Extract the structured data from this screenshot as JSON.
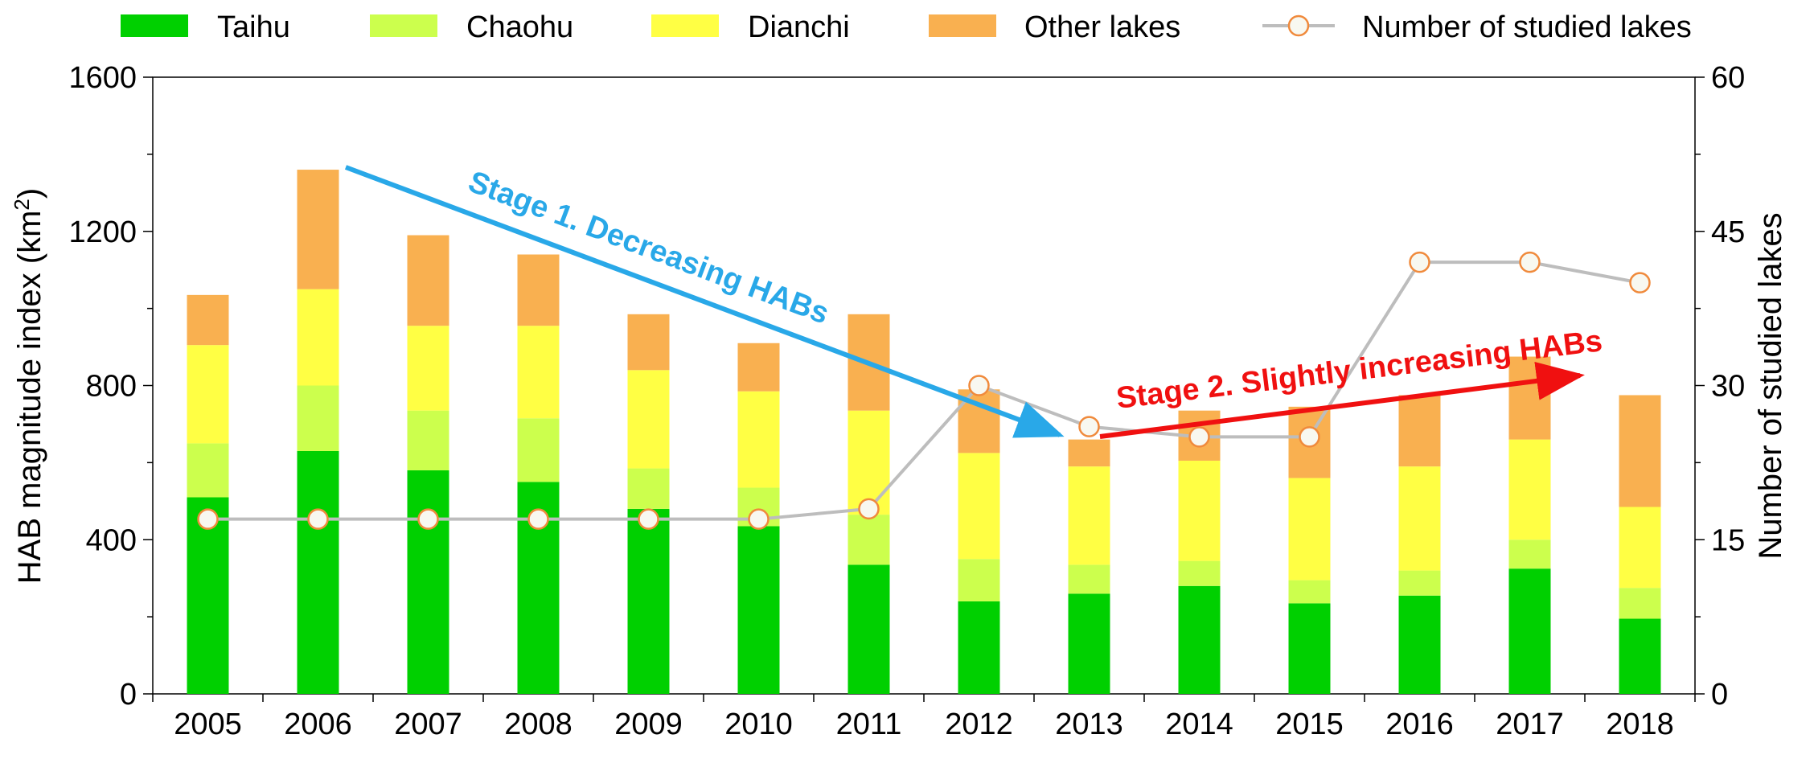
{
  "chart_data": {
    "type": "bar",
    "stacked": true,
    "categories": [
      "2005",
      "2006",
      "2007",
      "2008",
      "2009",
      "2010",
      "2011",
      "2012",
      "2013",
      "2014",
      "2015",
      "2016",
      "2017",
      "2018"
    ],
    "series": [
      {
        "name": "Taihu",
        "color": "#00D000",
        "values": [
          510,
          630,
          580,
          550,
          480,
          435,
          335,
          240,
          260,
          280,
          235,
          255,
          325,
          195
        ]
      },
      {
        "name": "Chaohu",
        "color": "#CCFF4D",
        "values": [
          140,
          170,
          155,
          165,
          105,
          100,
          130,
          110,
          75,
          65,
          60,
          65,
          75,
          80
        ]
      },
      {
        "name": "Dianchi",
        "color": "#FFFF44",
        "values": [
          255,
          250,
          220,
          240,
          255,
          250,
          270,
          275,
          255,
          260,
          265,
          270,
          260,
          210
        ]
      },
      {
        "name": "Other lakes",
        "color": "#F9B050",
        "values": [
          130,
          310,
          235,
          185,
          145,
          125,
          250,
          165,
          70,
          130,
          185,
          185,
          215,
          290
        ]
      }
    ],
    "line_series": {
      "name": "Number of studied lakes",
      "axis": "right",
      "values": [
        17,
        17,
        17,
        17,
        17,
        17,
        18,
        30,
        26,
        25,
        25,
        42,
        42,
        40
      ]
    },
    "ylabel": "HAB magnitude index (km²)",
    "ylabel_main": "HAB magnitude index (km",
    "ylabel_sup": "2",
    "ylabel_close": ")",
    "y2label": "Number of studied lakes",
    "ylim": [
      0,
      1600
    ],
    "y2lim": [
      0,
      60
    ],
    "yticks": [
      "0",
      "400",
      "800",
      "1200",
      "1600"
    ],
    "y2ticks": [
      "0",
      "15",
      "30",
      "45",
      "60"
    ],
    "legend_position": "top",
    "annotations": [
      {
        "text": "Stage 1. Decreasing HABs",
        "color": "#29A8E8"
      },
      {
        "text": "Stage 2. Slightly increasing HABs",
        "color": "#F01010"
      }
    ]
  }
}
